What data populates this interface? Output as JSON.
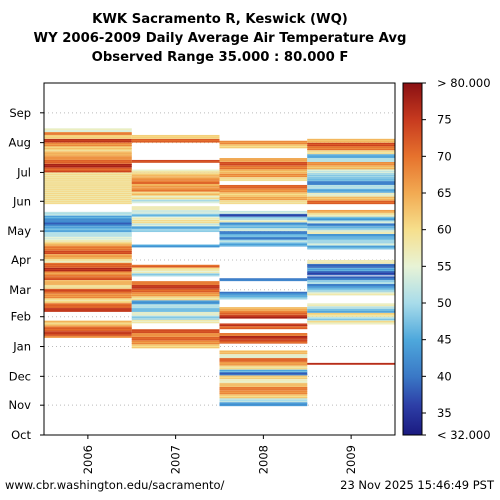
{
  "chart_data": {
    "type": "heatmap",
    "title_lines": [
      "KWK Sacramento R, Keswick (WQ)",
      "WY 2006-2009 Daily Average Air Temperature Avg",
      "Observed Range 35.000 : 80.000 F"
    ],
    "x_ticks": [
      "2006",
      "2007",
      "2008",
      "2009"
    ],
    "y_ticks": [
      "Oct",
      "Nov",
      "Dec",
      "Jan",
      "Feb",
      "Mar",
      "Apr",
      "May",
      "Jun",
      "Jul",
      "Aug",
      "Sep"
    ],
    "colorbar": {
      "range": [
        32,
        80
      ],
      "tick_labels": [
        "< 32.000",
        "35",
        "40",
        "45",
        "50",
        "55",
        "60",
        "65",
        "70",
        "75",
        "> 80.000"
      ],
      "tick_values": [
        32,
        35,
        40,
        45,
        50,
        55,
        60,
        65,
        70,
        75,
        80
      ],
      "stops": [
        [
          32,
          "#1a1a80"
        ],
        [
          36,
          "#2d3ea6"
        ],
        [
          40,
          "#3a78c6"
        ],
        [
          45,
          "#4ea8dc"
        ],
        [
          50,
          "#a8dcea"
        ],
        [
          55,
          "#e8f3d6"
        ],
        [
          60,
          "#f6df8c"
        ],
        [
          65,
          "#f2aa52"
        ],
        [
          70,
          "#e6722d"
        ],
        [
          75,
          "#c73a1f"
        ],
        [
          80,
          "#8a1013"
        ]
      ]
    },
    "grid": "dotted horizontal at month starts",
    "stripes": {
      "2006": [
        [
          240,
          273,
          58
        ],
        [
          273,
          278,
          72
        ],
        [
          278,
          282,
          76
        ],
        [
          282,
          286,
          70
        ],
        [
          286,
          290,
          66
        ],
        [
          290,
          295,
          63
        ],
        [
          295,
          300,
          61
        ],
        [
          300,
          304,
          66
        ],
        [
          304,
          308,
          74
        ],
        [
          308,
          312,
          60
        ],
        [
          312,
          315,
          68
        ],
        [
          315,
          319,
          55
        ],
        [
          228,
          232,
          50
        ],
        [
          223,
          228,
          44
        ],
        [
          217,
          223,
          40
        ],
        [
          211,
          217,
          46
        ],
        [
          206,
          211,
          50
        ],
        [
          201,
          206,
          55
        ],
        [
          197,
          201,
          62
        ],
        [
          192,
          197,
          68
        ],
        [
          188,
          192,
          72
        ],
        [
          183,
          188,
          65
        ],
        [
          179,
          183,
          58
        ],
        [
          174,
          179,
          70
        ],
        [
          170,
          174,
          75
        ],
        [
          165,
          170,
          67
        ],
        [
          161,
          165,
          72
        ],
        [
          156,
          161,
          63
        ],
        [
          152,
          156,
          58
        ],
        [
          147,
          152,
          72
        ],
        [
          142,
          147,
          66
        ],
        [
          137,
          142,
          60
        ],
        [
          132,
          137,
          70
        ],
        [
          128,
          132,
          74
        ],
        [
          113,
          119,
          62
        ],
        [
          108,
          113,
          70
        ],
        [
          103,
          108,
          74
        ],
        [
          101,
          103,
          66
        ]
      ],
      "2007": [
        [
          90,
          94,
          60
        ],
        [
          94,
          98,
          66
        ],
        [
          98,
          102,
          70
        ],
        [
          102,
          106,
          66
        ],
        [
          106,
          110,
          72
        ],
        [
          116,
          120,
          56
        ],
        [
          120,
          124,
          48
        ],
        [
          124,
          128,
          54
        ],
        [
          128,
          132,
          46
        ],
        [
          132,
          136,
          50
        ],
        [
          136,
          140,
          42
        ],
        [
          140,
          144,
          58
        ],
        [
          144,
          148,
          65
        ],
        [
          148,
          152,
          70
        ],
        [
          152,
          156,
          74
        ],
        [
          156,
          160,
          68
        ],
        [
          165,
          168,
          48
        ],
        [
          168,
          171,
          55
        ],
        [
          171,
          174,
          60
        ],
        [
          174,
          177,
          70
        ],
        [
          195,
          198,
          45
        ],
        [
          211,
          214,
          50
        ],
        [
          214,
          217,
          44
        ],
        [
          217,
          220,
          52
        ],
        [
          220,
          224,
          58
        ],
        [
          224,
          227,
          55
        ],
        [
          227,
          230,
          48
        ],
        [
          230,
          234,
          52
        ],
        [
          234,
          238,
          56
        ],
        [
          241,
          245,
          52
        ],
        [
          245,
          249,
          58
        ],
        [
          249,
          253,
          62
        ],
        [
          253,
          257,
          68
        ],
        [
          257,
          261,
          65
        ],
        [
          261,
          265,
          70
        ],
        [
          265,
          269,
          66
        ],
        [
          269,
          273,
          62
        ],
        [
          273,
          276,
          56
        ],
        [
          283,
          286,
          74
        ],
        [
          304,
          308,
          70
        ],
        [
          308,
          312,
          60
        ]
      ],
      "2008": [
        [
          30,
          34,
          42
        ],
        [
          34,
          38,
          50
        ],
        [
          38,
          42,
          60
        ],
        [
          42,
          46,
          66
        ],
        [
          46,
          50,
          68
        ],
        [
          50,
          54,
          62
        ],
        [
          54,
          58,
          55
        ],
        [
          58,
          62,
          60
        ],
        [
          62,
          65,
          38
        ],
        [
          65,
          68,
          45
        ],
        [
          68,
          72,
          58
        ],
        [
          72,
          76,
          65
        ],
        [
          76,
          80,
          70
        ],
        [
          80,
          84,
          54
        ],
        [
          84,
          88,
          62
        ],
        [
          95,
          99,
          72
        ],
        [
          99,
          103,
          76
        ],
        [
          103,
          106,
          70
        ],
        [
          110,
          113,
          70
        ],
        [
          113,
          116,
          74
        ],
        [
          121,
          125,
          76
        ],
        [
          125,
          129,
          70
        ],
        [
          129,
          133,
          64
        ],
        [
          141,
          145,
          48
        ],
        [
          145,
          149,
          42
        ],
        [
          160,
          163,
          40
        ],
        [
          196,
          200,
          44
        ],
        [
          200,
          203,
          50
        ],
        [
          203,
          206,
          42
        ],
        [
          206,
          209,
          46
        ],
        [
          209,
          212,
          40
        ],
        [
          212,
          215,
          52
        ],
        [
          215,
          218,
          48
        ],
        [
          218,
          221,
          42
        ],
        [
          221,
          224,
          55
        ],
        [
          224,
          227,
          48
        ],
        [
          227,
          230,
          38
        ],
        [
          230,
          233,
          52
        ],
        [
          240,
          244,
          58
        ],
        [
          244,
          248,
          64
        ],
        [
          248,
          252,
          60
        ],
        [
          252,
          256,
          66
        ],
        [
          256,
          260,
          70
        ],
        [
          264,
          268,
          58
        ],
        [
          268,
          272,
          66
        ],
        [
          272,
          276,
          62
        ],
        [
          276,
          280,
          68
        ],
        [
          280,
          284,
          72
        ],
        [
          284,
          288,
          64
        ],
        [
          298,
          302,
          60
        ],
        [
          302,
          306,
          66
        ]
      ],
      "2009": [
        [
          73,
          75,
          75
        ],
        [
          115,
          119,
          58
        ],
        [
          119,
          123,
          50
        ],
        [
          123,
          127,
          60
        ],
        [
          127,
          131,
          46
        ],
        [
          131,
          134,
          52
        ],
        [
          134,
          137,
          56
        ],
        [
          145,
          149,
          56
        ],
        [
          149,
          153,
          48
        ],
        [
          153,
          157,
          42
        ],
        [
          157,
          161,
          50
        ],
        [
          161,
          165,
          40
        ],
        [
          166,
          170,
          36
        ],
        [
          170,
          174,
          44
        ],
        [
          174,
          178,
          38
        ],
        [
          178,
          182,
          56
        ],
        [
          193,
          197,
          46
        ],
        [
          197,
          201,
          52
        ],
        [
          201,
          205,
          48
        ],
        [
          205,
          209,
          44
        ],
        [
          209,
          213,
          56
        ],
        [
          213,
          217,
          48
        ],
        [
          217,
          220,
          40
        ],
        [
          220,
          223,
          52
        ],
        [
          223,
          227,
          45
        ],
        [
          227,
          231,
          58
        ],
        [
          231,
          234,
          66
        ],
        [
          240,
          244,
          70
        ],
        [
          244,
          248,
          62
        ],
        [
          248,
          252,
          54
        ],
        [
          252,
          256,
          44
        ],
        [
          256,
          260,
          50
        ],
        [
          260,
          264,
          40
        ],
        [
          264,
          268,
          46
        ],
        [
          268,
          272,
          48
        ],
        [
          272,
          276,
          52
        ],
        [
          276,
          280,
          62
        ],
        [
          280,
          284,
          66
        ],
        [
          284,
          288,
          50
        ],
        [
          288,
          292,
          44
        ],
        [
          292,
          296,
          58
        ],
        [
          296,
          300,
          68
        ],
        [
          300,
          304,
          72
        ],
        [
          304,
          308,
          62
        ]
      ]
    }
  },
  "footer": {
    "left": "www.cbr.washington.edu/sacramento/",
    "right": "23 Nov 2025 15:46:49 PST"
  }
}
